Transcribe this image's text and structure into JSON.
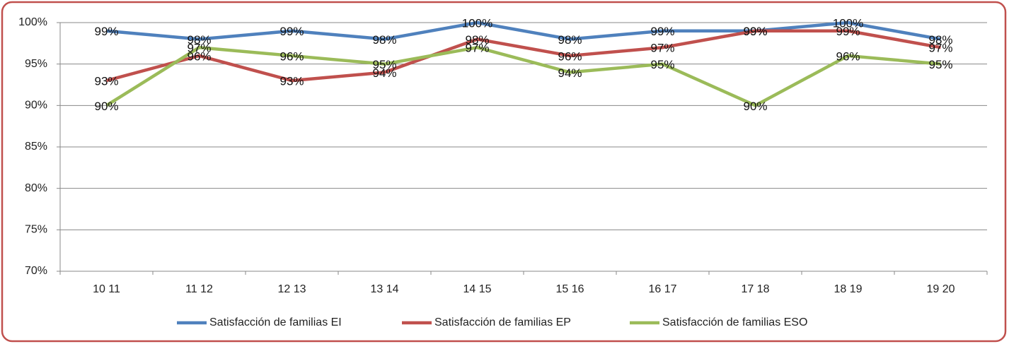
{
  "chart_data": {
    "type": "line",
    "categories": [
      "10 11",
      "11 12",
      "12 13",
      "13 14",
      "14 15",
      "15 16",
      "16 17",
      "17 18",
      "18 19",
      "19 20"
    ],
    "series": [
      {
        "name": "Satisfacción de familias EI",
        "color": "#4f81bd",
        "values": [
          99,
          98,
          99,
          98,
          100,
          98,
          99,
          99,
          100,
          98
        ],
        "value_labels": [
          "99%",
          "98%",
          "99%",
          "98%",
          "100%",
          "98%",
          "99%",
          "99%",
          "100%",
          "98%"
        ]
      },
      {
        "name": "Satisfacción de familias EP",
        "color": "#c0504d",
        "values": [
          93,
          96,
          93,
          94,
          98,
          96,
          97,
          99,
          99,
          97
        ],
        "value_labels": [
          "93%",
          "96%",
          "93%",
          "94%",
          "98%",
          "96%",
          "97%",
          "99%",
          "99%",
          "97%"
        ]
      },
      {
        "name": "Satisfacción de familias ESO",
        "color": "#9bbb59",
        "values": [
          90,
          97,
          96,
          95,
          97,
          94,
          95,
          90,
          96,
          95
        ],
        "value_labels": [
          "90%",
          "97%",
          "96%",
          "95%",
          "97%",
          "94%",
          "95%",
          "90%",
          "96%",
          "95%"
        ]
      }
    ],
    "ylim": [
      70,
      100
    ],
    "yticks": [
      {
        "value": 70,
        "label": "70%"
      },
      {
        "value": 75,
        "label": "75%"
      },
      {
        "value": 80,
        "label": "80%"
      },
      {
        "value": 85,
        "label": "85%"
      },
      {
        "value": 90,
        "label": "90%"
      },
      {
        "value": 95,
        "label": "95%"
      },
      {
        "value": 100,
        "label": "100%"
      }
    ],
    "grid": true,
    "legend": "bottom"
  }
}
